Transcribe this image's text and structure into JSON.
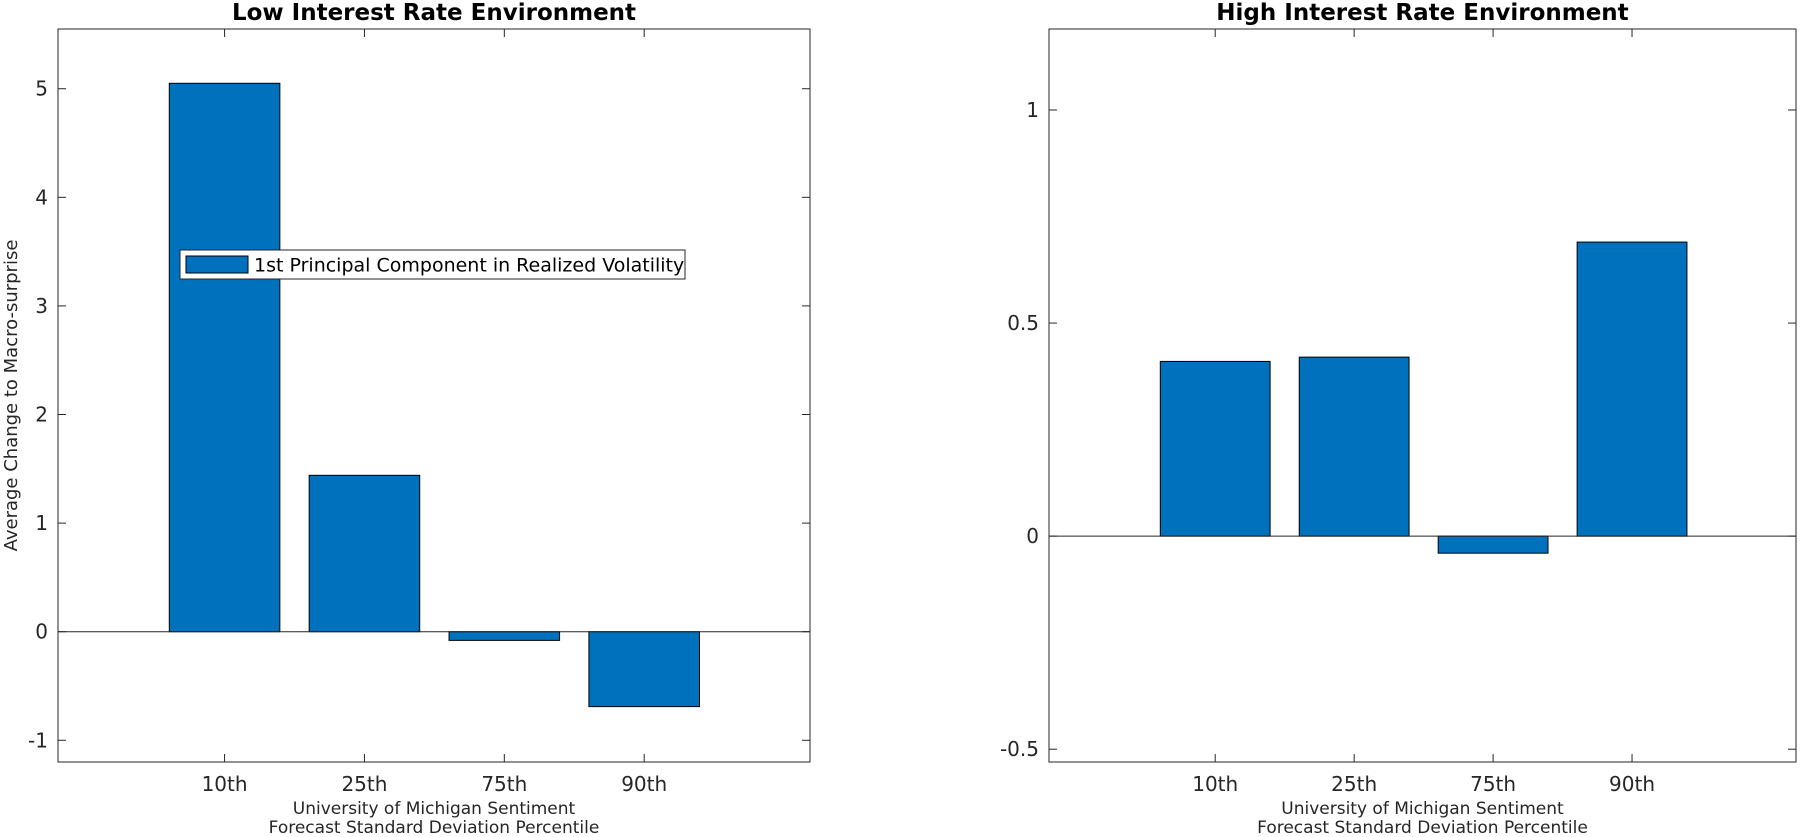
{
  "chart_data": [
    {
      "type": "bar",
      "title": "Low Interest Rate Environment",
      "categories": [
        "10th",
        "25th",
        "75th",
        "90th"
      ],
      "series": [
        {
          "name": "1st Principal Component in Realized Volatility",
          "values": [
            5.05,
            1.44,
            -0.08,
            -0.69
          ]
        }
      ],
      "xlabel": [
        "University of Michigan Sentiment",
        "Forecast Standard Deviation Percentile"
      ],
      "ylabel": "Average Change to Macro-surprise",
      "ylim": [
        -1.2,
        5.55
      ],
      "yticks": [
        -1,
        0,
        1,
        2,
        3,
        4,
        5
      ],
      "ytick_labels": [
        "-1",
        "0",
        "1",
        "2",
        "3",
        "4",
        "5"
      ],
      "legend_position": "center-left",
      "bar_color": "#0072BD",
      "grid": false
    },
    {
      "type": "bar",
      "title": "High Interest Rate Environment",
      "categories": [
        "10th",
        "25th",
        "75th",
        "90th"
      ],
      "series": [
        {
          "values": [
            0.41,
            0.42,
            -0.04,
            0.69
          ]
        }
      ],
      "xlabel": [
        "University of Michigan Sentiment",
        "Forecast Standard Deviation Percentile"
      ],
      "ylabel": "",
      "ylim": [
        -0.53,
        1.19
      ],
      "yticks": [
        -0.5,
        0,
        0.5,
        1
      ],
      "ytick_labels": [
        "-0.5",
        "0",
        "0.5",
        "1"
      ],
      "bar_color": "#0072BD",
      "grid": false
    }
  ]
}
